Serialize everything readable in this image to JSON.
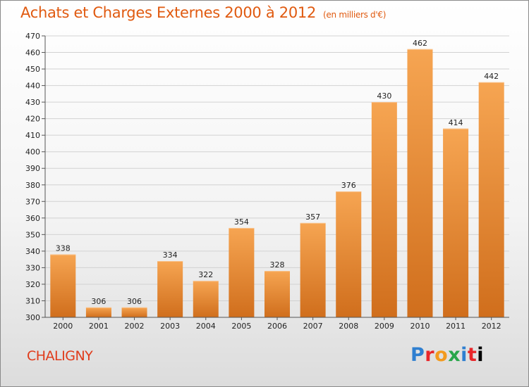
{
  "title": "Achats et Charges Externes 2000 à 2012",
  "subtitle": "(en milliers d'€)",
  "commune": "CHALIGNY",
  "logo": {
    "letters": [
      "P",
      "r",
      "o",
      "x",
      "i",
      "t",
      "i"
    ]
  },
  "colors": {
    "bar_top": "#f6a552",
    "bar_bottom": "#d06e1c",
    "title": "#e05a10",
    "commune": "#e03b1a"
  },
  "chart_data": {
    "type": "bar",
    "categories": [
      "2000",
      "2001",
      "2002",
      "2003",
      "2004",
      "2005",
      "2006",
      "2007",
      "2008",
      "2009",
      "2010",
      "2011",
      "2012"
    ],
    "values": [
      338,
      306,
      306,
      334,
      322,
      354,
      328,
      357,
      376,
      430,
      462,
      414,
      442
    ],
    "ylim": [
      300,
      470
    ],
    "yticks": [
      300,
      310,
      320,
      330,
      340,
      350,
      360,
      370,
      380,
      390,
      400,
      410,
      420,
      430,
      440,
      450,
      460,
      470
    ],
    "grid": true,
    "data_labels": true
  }
}
